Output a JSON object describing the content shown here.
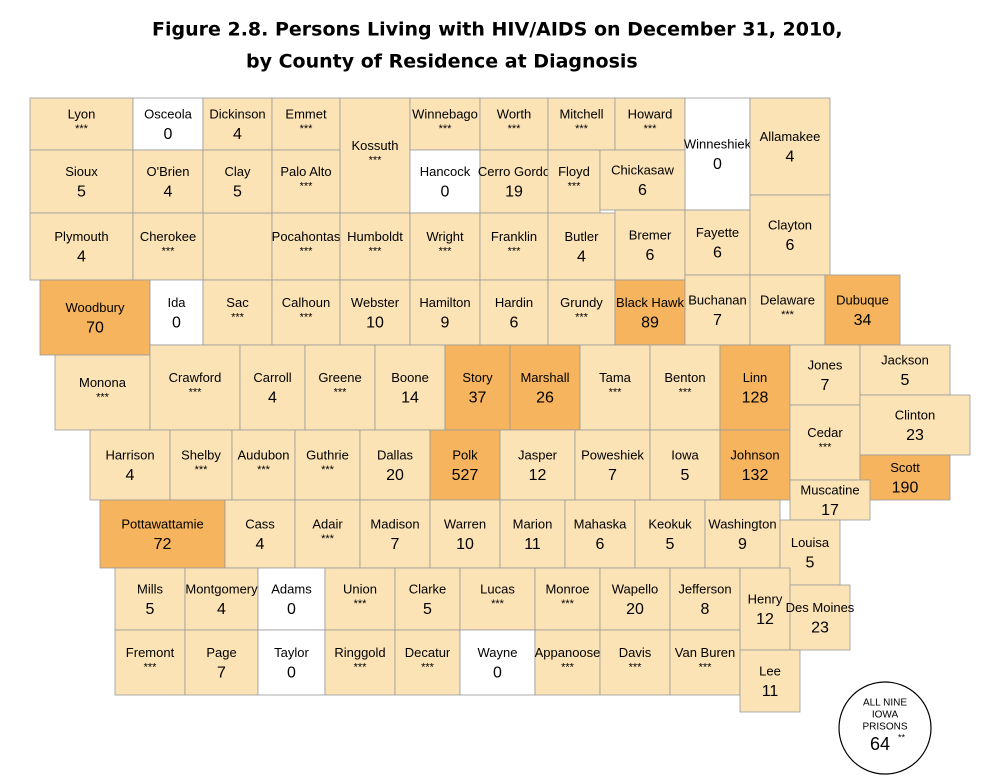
{
  "title": [
    "Figure 2.8.   Persons Living with HIV/AIDS on December 31, 2010,",
    "by County of Residence at Diagnosis"
  ],
  "counties": [
    {
      "name": "Lyon",
      "value": "***",
      "color": "#fbe3b6"
    },
    {
      "name": "Osceola",
      "value": 0,
      "color": "#ffffff"
    },
    {
      "name": "Dickinson",
      "value": 4,
      "color": "#fbe3b6"
    },
    {
      "name": "Emmet",
      "value": "***",
      "color": "#fbe3b6"
    },
    {
      "name": "Kossuth",
      "value": "***",
      "color": "#fbe3b6"
    },
    {
      "name": "Winnebago",
      "value": "***",
      "color": "#fbe3b6"
    },
    {
      "name": "Worth",
      "value": "***",
      "color": "#fbe3b6"
    },
    {
      "name": "Mitchell",
      "value": "***",
      "color": "#fbe3b6"
    },
    {
      "name": "Howard",
      "value": "***",
      "color": "#fbe3b6"
    },
    {
      "name": "Winneshiek",
      "value": 0,
      "color": "#ffffff"
    },
    {
      "name": "Allamakee",
      "value": 4,
      "color": "#fbe3b6"
    },
    {
      "name": "Sioux",
      "value": 5,
      "color": "#fbe3b6"
    },
    {
      "name": "O'Brien",
      "value": 4,
      "color": "#fbe3b6"
    },
    {
      "name": "Clay",
      "value": 5,
      "color": "#fbe3b6"
    },
    {
      "name": "Palo Alto",
      "value": "***",
      "color": "#fbe3b6"
    },
    {
      "name": "Hancock",
      "value": 0,
      "color": "#ffffff"
    },
    {
      "name": "Cerro Gordo",
      "value": 19,
      "color": "#fbe3b6"
    },
    {
      "name": "Floyd",
      "value": "***",
      "color": "#fbe3b6"
    },
    {
      "name": "Chickasaw",
      "value": 6,
      "color": "#fbe3b6"
    },
    {
      "name": "Plymouth",
      "value": 4,
      "color": "#fbe3b6"
    },
    {
      "name": "Cherokee",
      "value": "***",
      "color": "#fbe3b6"
    },
    {
      "name": "Pocahontas",
      "value": "***",
      "color": "#fbe3b6"
    },
    {
      "name": "Humboldt",
      "value": "***",
      "color": "#fbe3b6"
    },
    {
      "name": "Wright",
      "value": "***",
      "color": "#fbe3b6"
    },
    {
      "name": "Franklin",
      "value": "***",
      "color": "#fbe3b6"
    },
    {
      "name": "Butler",
      "value": 4,
      "color": "#fbe3b6"
    },
    {
      "name": "Bremer",
      "value": 6,
      "color": "#fbe3b6"
    },
    {
      "name": "Fayette",
      "value": 6,
      "color": "#fbe3b6"
    },
    {
      "name": "Clayton",
      "value": 6,
      "color": "#fbe3b6"
    },
    {
      "name": "Woodbury",
      "value": 70,
      "color": "#f6b45e"
    },
    {
      "name": "Ida",
      "value": 0,
      "color": "#ffffff"
    },
    {
      "name": "Sac",
      "value": "***",
      "color": "#fbe3b6"
    },
    {
      "name": "Calhoun",
      "value": "***",
      "color": "#fbe3b6"
    },
    {
      "name": "Webster",
      "value": 10,
      "color": "#fbe3b6"
    },
    {
      "name": "Hamilton",
      "value": 9,
      "color": "#fbe3b6"
    },
    {
      "name": "Hardin",
      "value": 6,
      "color": "#fbe3b6"
    },
    {
      "name": "Grundy",
      "value": "***",
      "color": "#fbe3b6"
    },
    {
      "name": "Black Hawk",
      "value": 89,
      "color": "#f6b45e"
    },
    {
      "name": "Buchanan",
      "value": 7,
      "color": "#fbe3b6"
    },
    {
      "name": "Delaware",
      "value": "***",
      "color": "#fbe3b6"
    },
    {
      "name": "Dubuque",
      "value": 34,
      "color": "#f6b45e"
    },
    {
      "name": "Monona",
      "value": "***",
      "color": "#fbe3b6"
    },
    {
      "name": "Crawford",
      "value": "***",
      "color": "#fbe3b6"
    },
    {
      "name": "Carroll",
      "value": 4,
      "color": "#fbe3b6"
    },
    {
      "name": "Greene",
      "value": "***",
      "color": "#fbe3b6"
    },
    {
      "name": "Boone",
      "value": 14,
      "color": "#fbe3b6"
    },
    {
      "name": "Story",
      "value": 37,
      "color": "#f6b45e"
    },
    {
      "name": "Marshall",
      "value": 26,
      "color": "#f6b45e"
    },
    {
      "name": "Tama",
      "value": "***",
      "color": "#fbe3b6"
    },
    {
      "name": "Benton",
      "value": "***",
      "color": "#fbe3b6"
    },
    {
      "name": "Linn",
      "value": 128,
      "color": "#f6b45e"
    },
    {
      "name": "Jones",
      "value": 7,
      "color": "#fbe3b6"
    },
    {
      "name": "Jackson",
      "value": 5,
      "color": "#fbe3b6"
    },
    {
      "name": "Harrison",
      "value": 4,
      "color": "#fbe3b6"
    },
    {
      "name": "Shelby",
      "value": "***",
      "color": "#fbe3b6"
    },
    {
      "name": "Audubon",
      "value": "***",
      "color": "#fbe3b6"
    },
    {
      "name": "Guthrie",
      "value": "***",
      "color": "#fbe3b6"
    },
    {
      "name": "Dallas",
      "value": 20,
      "color": "#fbe3b6"
    },
    {
      "name": "Polk",
      "value": 527,
      "color": "#f6b45e"
    },
    {
      "name": "Jasper",
      "value": 12,
      "color": "#fbe3b6"
    },
    {
      "name": "Poweshiek",
      "value": 7,
      "color": "#fbe3b6"
    },
    {
      "name": "Iowa",
      "value": 5,
      "color": "#fbe3b6"
    },
    {
      "name": "Johnson",
      "value": 132,
      "color": "#f6b45e"
    },
    {
      "name": "Cedar",
      "value": "***",
      "color": "#fbe3b6"
    },
    {
      "name": "Clinton",
      "value": 23,
      "color": "#fbe3b6"
    },
    {
      "name": "Scott",
      "value": 190,
      "color": "#f6b45e"
    },
    {
      "name": "Muscatine",
      "value": 17,
      "color": "#fbe3b6"
    },
    {
      "name": "Pottawattamie",
      "value": 72,
      "color": "#f6b45e"
    },
    {
      "name": "Cass",
      "value": 4,
      "color": "#fbe3b6"
    },
    {
      "name": "Adair",
      "value": "***",
      "color": "#fbe3b6"
    },
    {
      "name": "Madison",
      "value": 7,
      "color": "#fbe3b6"
    },
    {
      "name": "Warren",
      "value": 10,
      "color": "#fbe3b6"
    },
    {
      "name": "Marion",
      "value": 11,
      "color": "#fbe3b6"
    },
    {
      "name": "Mahaska",
      "value": 6,
      "color": "#fbe3b6"
    },
    {
      "name": "Keokuk",
      "value": 5,
      "color": "#fbe3b6"
    },
    {
      "name": "Washington",
      "value": 9,
      "color": "#fbe3b6"
    },
    {
      "name": "Louisa",
      "value": 5,
      "color": "#fbe3b6"
    },
    {
      "name": "Mills",
      "value": 5,
      "color": "#fbe3b6"
    },
    {
      "name": "Montgomery",
      "value": 4,
      "color": "#fbe3b6"
    },
    {
      "name": "Adams",
      "value": 0,
      "color": "#ffffff"
    },
    {
      "name": "Union",
      "value": "***",
      "color": "#fbe3b6"
    },
    {
      "name": "Clarke",
      "value": 5,
      "color": "#fbe3b6"
    },
    {
      "name": "Lucas",
      "value": "***",
      "color": "#fbe3b6"
    },
    {
      "name": "Monroe",
      "value": "***",
      "color": "#fbe3b6"
    },
    {
      "name": "Wapello",
      "value": 20,
      "color": "#fbe3b6"
    },
    {
      "name": "Jefferson",
      "value": 8,
      "color": "#fbe3b6"
    },
    {
      "name": "Henry",
      "value": 12,
      "color": "#fbe3b6"
    },
    {
      "name": "Des Moines",
      "value": 23,
      "color": "#fbe3b6"
    },
    {
      "name": "Fremont",
      "value": "***",
      "color": "#fbe3b6"
    },
    {
      "name": "Page",
      "value": 7,
      "color": "#fbe3b6"
    },
    {
      "name": "Taylor",
      "value": 0,
      "color": "#ffffff"
    },
    {
      "name": "Ringgold",
      "value": "***",
      "color": "#fbe3b6"
    },
    {
      "name": "Decatur",
      "value": "***",
      "color": "#fbe3b6"
    },
    {
      "name": "Wayne",
      "value": 0,
      "color": "#ffffff"
    },
    {
      "name": "Appanoose",
      "value": "***",
      "color": "#fbe3b6"
    },
    {
      "name": "Davis",
      "value": "***",
      "color": "#fbe3b6"
    },
    {
      "name": "Van Buren",
      "value": "***",
      "color": "#fbe3b6"
    },
    {
      "name": "Lee",
      "value": 11,
      "color": "#fbe3b6"
    }
  ],
  "prisons": {
    "label": [
      "ALL NINE",
      "IOWA",
      "PRISONS"
    ],
    "value": 64,
    "note": "**"
  }
}
